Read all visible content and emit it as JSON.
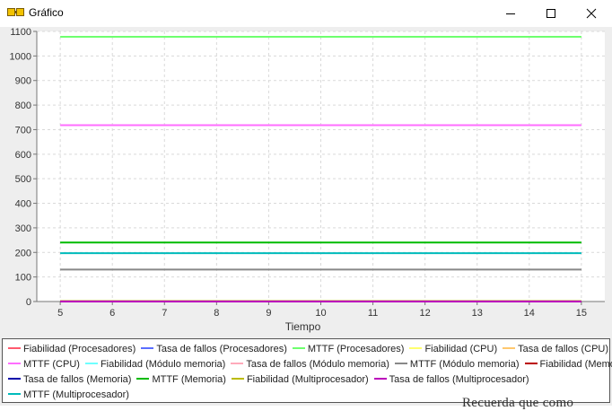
{
  "window": {
    "title": "Gráfico",
    "icon": "chart-app-icon",
    "controls": {
      "minimize": "minimize-icon",
      "maximize": "maximize-icon",
      "close": "close-icon"
    }
  },
  "background_text": "Recuerda que como",
  "chart_data": {
    "type": "line",
    "xlabel": "Tiempo",
    "ylabel": "",
    "title": "",
    "x": [
      5,
      6,
      7,
      8,
      9,
      10,
      11,
      12,
      13,
      14,
      15
    ],
    "xlim": [
      4.55,
      15.45
    ],
    "ylim": [
      0,
      1100
    ],
    "yticks": [
      0,
      100,
      200,
      300,
      400,
      500,
      600,
      700,
      800,
      900,
      1000,
      1100
    ],
    "grid": true,
    "legend_position": "bottom",
    "series": [
      {
        "name": "Fiabilidad (Procesadores)",
        "color": "#ff5a6e",
        "values": [
          1,
          1,
          1,
          1,
          1,
          1,
          1,
          1,
          1,
          1,
          1
        ]
      },
      {
        "name": "Tasa de fallos (Procesadores)",
        "color": "#5a6eff",
        "values": [
          0,
          0,
          0,
          0,
          0,
          0,
          0,
          0,
          0,
          0,
          0
        ]
      },
      {
        "name": "MTTF (Procesadores)",
        "color": "#6eff6e",
        "values": [
          1078,
          1078,
          1078,
          1078,
          1078,
          1078,
          1078,
          1078,
          1078,
          1078,
          1078
        ]
      },
      {
        "name": "Fiabilidad (CPU)",
        "color": "#ffff6e",
        "values": [
          1,
          1,
          1,
          1,
          1,
          1,
          1,
          1,
          1,
          1,
          1
        ]
      },
      {
        "name": "Tasa de fallos (CPU)",
        "color": "#ffc86e",
        "values": [
          0,
          0,
          0,
          0,
          0,
          0,
          0,
          0,
          0,
          0,
          0
        ]
      },
      {
        "name": "MTTF (CPU)",
        "color": "#ff6eff",
        "values": [
          718,
          718,
          718,
          718,
          718,
          718,
          718,
          718,
          718,
          718,
          718
        ]
      },
      {
        "name": "Fiabilidad (Módulo memoria)",
        "color": "#6effff",
        "values": [
          1,
          1,
          1,
          1,
          1,
          1,
          1,
          1,
          1,
          1,
          1
        ]
      },
      {
        "name": "Tasa de fallos (Módulo memoria)",
        "color": "#ffaabb",
        "values": [
          0,
          0,
          0,
          0,
          0,
          0,
          0,
          0,
          0,
          0,
          0
        ]
      },
      {
        "name": "MTTF (Módulo memoria)",
        "color": "#888888",
        "values": [
          130,
          130,
          130,
          130,
          130,
          130,
          130,
          130,
          130,
          130,
          130
        ]
      },
      {
        "name": "Fiabilidad (Memoria)",
        "color": "#bb0000",
        "values": [
          1,
          1,
          1,
          1,
          1,
          1,
          1,
          1,
          1,
          1,
          1
        ]
      },
      {
        "name": "Tasa de fallos (Memoria)",
        "color": "#0000aa",
        "values": [
          0,
          0,
          0,
          0,
          0,
          0,
          0,
          0,
          0,
          0,
          0
        ]
      },
      {
        "name": "MTTF (Memoria)",
        "color": "#00bb00",
        "values": [
          240,
          240,
          240,
          240,
          240,
          240,
          240,
          240,
          240,
          240,
          240
        ]
      },
      {
        "name": "Fiabilidad (Multiprocesador)",
        "color": "#bbbb00",
        "values": [
          1,
          1,
          1,
          1,
          1,
          1,
          1,
          1,
          1,
          1,
          1
        ]
      },
      {
        "name": "Tasa de fallos (Multiprocesador)",
        "color": "#bb00bb",
        "values": [
          0,
          0,
          0,
          0,
          0,
          0,
          0,
          0,
          0,
          0,
          0
        ]
      },
      {
        "name": "MTTF (Multiprocesador)",
        "color": "#00bbbb",
        "values": [
          197,
          197,
          197,
          197,
          197,
          197,
          197,
          197,
          197,
          197,
          197
        ]
      }
    ]
  }
}
